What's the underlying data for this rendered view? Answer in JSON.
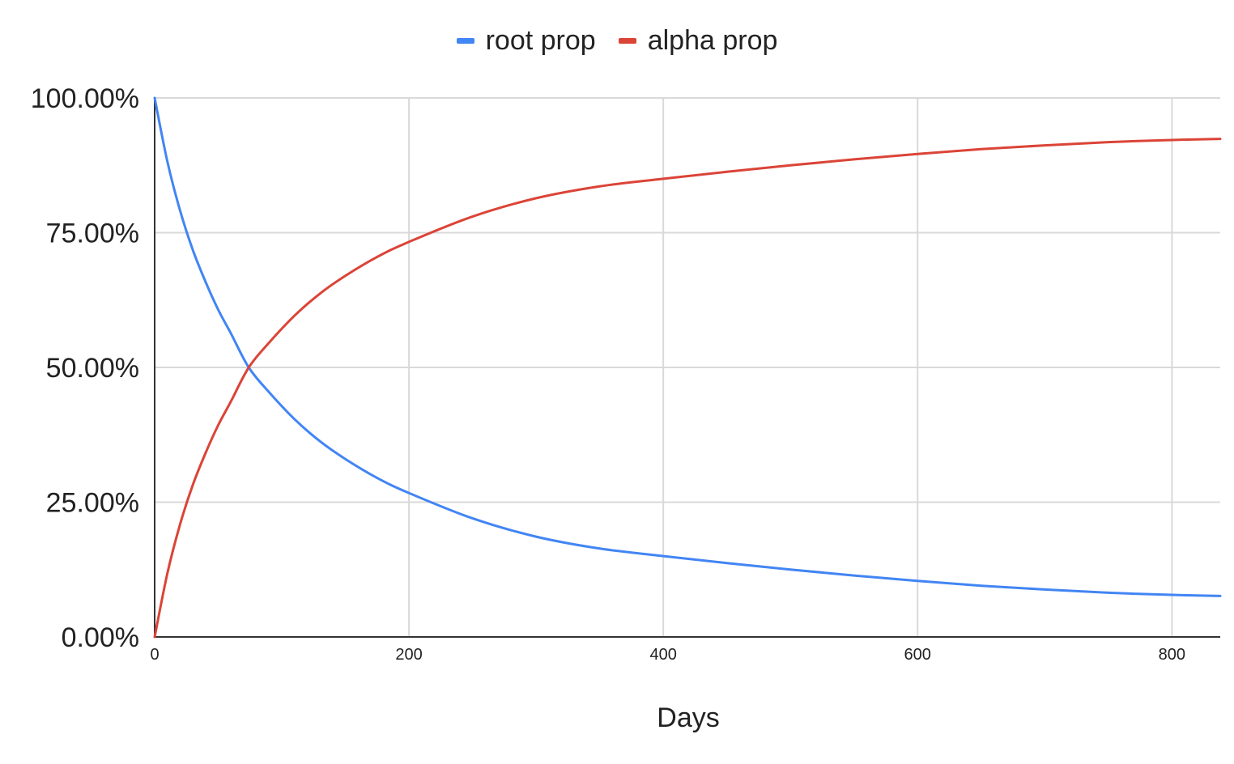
{
  "chart_data": {
    "type": "line",
    "xlabel": "Days",
    "ylabel": "",
    "xlim": [
      0,
      838
    ],
    "ylim": [
      0,
      1
    ],
    "x_ticks": [
      0,
      200,
      400,
      600,
      800
    ],
    "x_tick_labels": [
      "0",
      "200",
      "400",
      "600",
      "800"
    ],
    "y_ticks": [
      0,
      0.25,
      0.5,
      0.75,
      1
    ],
    "y_tick_labels": [
      "0.00%",
      "25.00%",
      "50.00%",
      "75.00%",
      "100.00%"
    ],
    "grid": true,
    "legend_position": "top",
    "x": [
      0,
      10,
      20,
      30,
      40,
      50,
      60,
      74,
      90,
      110,
      130,
      150,
      175,
      200,
      250,
      300,
      350,
      400,
      450,
      500,
      550,
      600,
      650,
      700,
      750,
      800,
      838
    ],
    "series": [
      {
        "name": "root prop",
        "color": "#4285f4",
        "values": [
          1.0,
          0.882,
          0.791,
          0.718,
          0.659,
          0.607,
          0.563,
          0.5,
          0.454,
          0.404,
          0.363,
          0.33,
          0.295,
          0.267,
          0.22,
          0.186,
          0.164,
          0.15,
          0.137,
          0.125,
          0.114,
          0.104,
          0.095,
          0.088,
          0.082,
          0.078,
          0.076
        ]
      },
      {
        "name": "alpha prop",
        "color": "#db4437",
        "values": [
          0.0,
          0.118,
          0.209,
          0.282,
          0.341,
          0.393,
          0.437,
          0.5,
          0.546,
          0.596,
          0.637,
          0.67,
          0.705,
          0.733,
          0.78,
          0.814,
          0.836,
          0.85,
          0.863,
          0.875,
          0.886,
          0.896,
          0.905,
          0.912,
          0.918,
          0.922,
          0.924
        ]
      }
    ]
  }
}
